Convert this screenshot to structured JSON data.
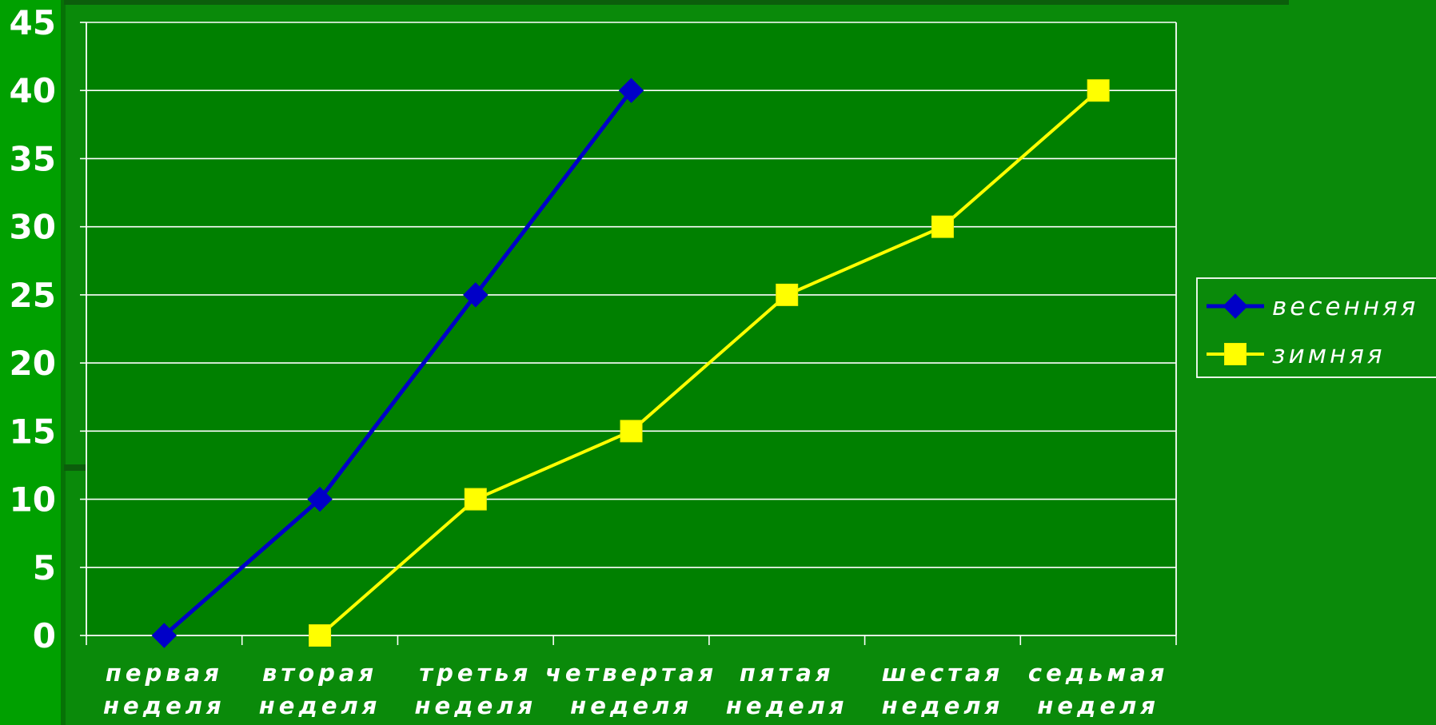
{
  "colors": {
    "background_left": "#00a000",
    "background_main": "#0a8a0a",
    "plot_area": "#008000",
    "gridline": "#ffffff",
    "tick_label": "#ffffff"
  },
  "chart_data": {
    "type": "line",
    "title": "",
    "xlabel": "",
    "ylabel": "",
    "ylim": [
      0,
      45
    ],
    "ytick_step": 5,
    "grid": true,
    "legend_position": "right",
    "categories": [
      [
        "первая",
        "неделя"
      ],
      [
        "вторая",
        "неделя"
      ],
      [
        "третья",
        "неделя"
      ],
      [
        "четвертая",
        "неделя"
      ],
      [
        "пятая",
        "неделя"
      ],
      [
        "шестая",
        "неделя"
      ],
      [
        "седьмая",
        "неделя"
      ]
    ],
    "series": [
      {
        "name": "весенняя",
        "color": "#0000c8",
        "marker": "diamond",
        "values": [
          0,
          10,
          25,
          40,
          null,
          null,
          null
        ]
      },
      {
        "name": "зимняя",
        "color": "#ffff00",
        "marker": "square",
        "values": [
          null,
          0,
          10,
          15,
          25,
          30,
          40
        ]
      }
    ]
  }
}
